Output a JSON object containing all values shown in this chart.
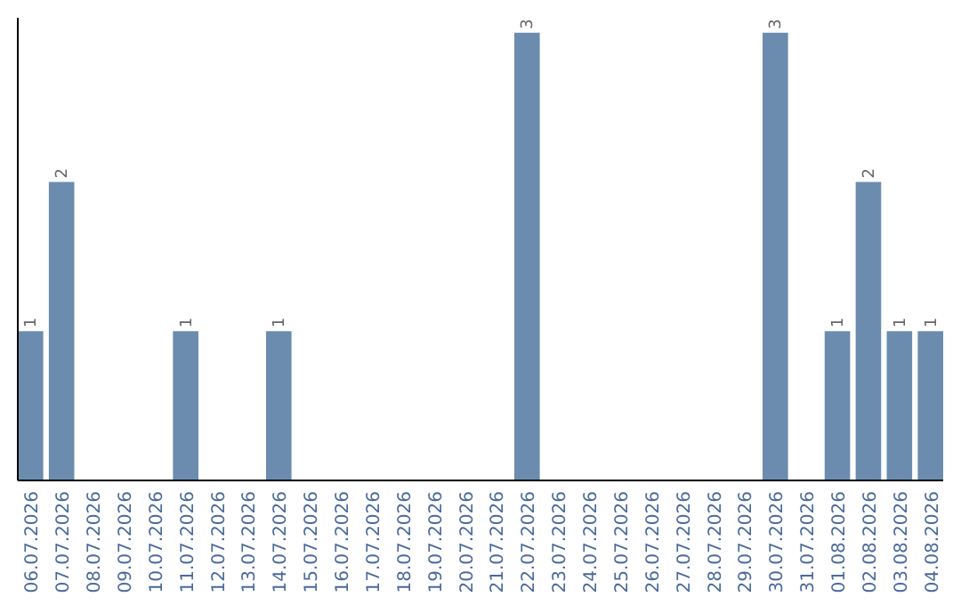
{
  "chart_data": {
    "type": "bar",
    "categories": [
      "06.07.2026",
      "07.07.2026",
      "08.07.2026",
      "09.07.2026",
      "10.07.2026",
      "11.07.2026",
      "12.07.2026",
      "13.07.2026",
      "14.07.2026",
      "15.07.2026",
      "16.07.2026",
      "17.07.2026",
      "18.07.2026",
      "19.07.2026",
      "20.07.2026",
      "21.07.2026",
      "22.07.2026",
      "23.07.2026",
      "24.07.2026",
      "25.07.2026",
      "26.07.2026",
      "27.07.2026",
      "28.07.2026",
      "29.07.2026",
      "30.07.2026",
      "31.07.2026",
      "01.08.2026",
      "02.08.2026",
      "03.08.2026",
      "04.08.2026"
    ],
    "values": [
      1,
      2,
      0,
      0,
      0,
      1,
      0,
      0,
      1,
      0,
      0,
      0,
      0,
      0,
      0,
      0,
      3,
      0,
      0,
      0,
      0,
      0,
      0,
      0,
      3,
      0,
      1,
      2,
      1,
      1
    ],
    "value_labels": [
      "1",
      "2",
      null,
      null,
      null,
      "1",
      null,
      null,
      "1",
      null,
      null,
      null,
      null,
      null,
      null,
      null,
      "3",
      null,
      null,
      null,
      null,
      null,
      null,
      null,
      "3",
      null,
      "1",
      "2",
      "1",
      "1"
    ],
    "color": "#6b8cae",
    "ylim": [
      0,
      3.1
    ],
    "tick_labels": "x"
  }
}
